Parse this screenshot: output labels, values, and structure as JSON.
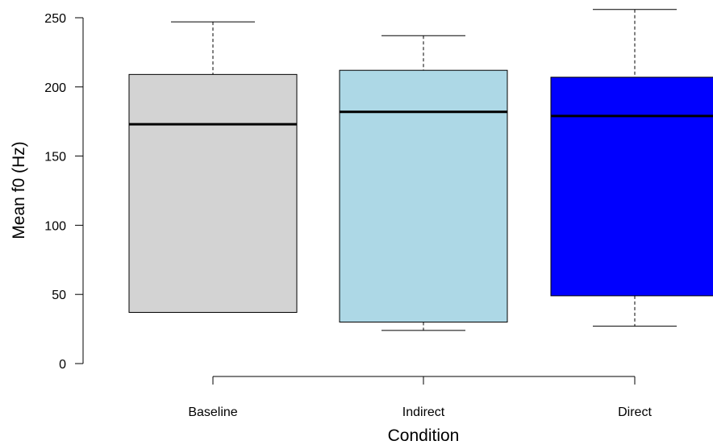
{
  "chart_data": {
    "type": "boxplot",
    "xlabel": "Condition",
    "ylabel": "Mean f0 (Hz)",
    "ylim": [
      0,
      250
    ],
    "yticks": [
      0,
      50,
      100,
      150,
      200,
      250
    ],
    "categories": [
      "Baseline",
      "Indirect",
      "Direct"
    ],
    "boxes": [
      {
        "category": "Baseline",
        "min": 37,
        "q1": 37,
        "median": 173,
        "q3": 209,
        "max": 247,
        "color": "#d3d3d3"
      },
      {
        "category": "Indirect",
        "min": 24,
        "q1": 30,
        "median": 182,
        "q3": 212,
        "max": 237,
        "color": "#add8e6"
      },
      {
        "category": "Direct",
        "min": 27,
        "q1": 49,
        "median": 179,
        "q3": 207,
        "max": 256,
        "color": "#0000ff"
      }
    ],
    "grid": false,
    "legend": "none"
  }
}
